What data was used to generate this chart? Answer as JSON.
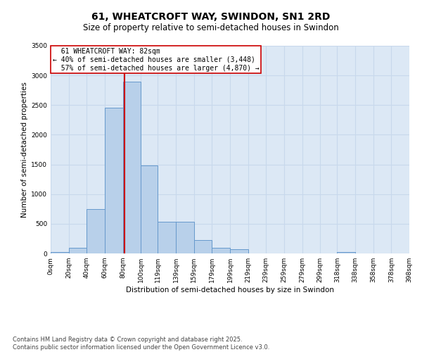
{
  "title": "61, WHEATCROFT WAY, SWINDON, SN1 2RD",
  "subtitle": "Size of property relative to semi-detached houses in Swindon",
  "xlabel": "Distribution of semi-detached houses by size in Swindon",
  "ylabel": "Number of semi-detached properties",
  "property_size": 82,
  "property_label": "61 WHEATCROFT WAY: 82sqm",
  "pct_smaller": 40,
  "count_smaller": 3448,
  "pct_larger": 57,
  "count_larger": 4870,
  "bin_edges": [
    0,
    20,
    40,
    60,
    80,
    100,
    119,
    139,
    159,
    179,
    199,
    219,
    239,
    259,
    279,
    299,
    318,
    338,
    358,
    378,
    398
  ],
  "bar_heights": [
    20,
    100,
    750,
    2450,
    2900,
    1480,
    530,
    530,
    220,
    90,
    70,
    0,
    0,
    0,
    0,
    0,
    20,
    0,
    0,
    0
  ],
  "bar_color": "#b8d0ea",
  "bar_edge_color": "#6699cc",
  "grid_color": "#c8d8ec",
  "background_color": "#dce8f5",
  "vline_color": "#cc0000",
  "annotation_box_color": "#cc0000",
  "ylim": [
    0,
    3500
  ],
  "yticks": [
    0,
    500,
    1000,
    1500,
    2000,
    2500,
    3000,
    3500
  ],
  "tick_labels": [
    "0sqm",
    "20sqm",
    "40sqm",
    "60sqm",
    "80sqm",
    "100sqm",
    "119sqm",
    "139sqm",
    "159sqm",
    "179sqm",
    "199sqm",
    "219sqm",
    "239sqm",
    "259sqm",
    "279sqm",
    "299sqm",
    "318sqm",
    "338sqm",
    "358sqm",
    "378sqm",
    "398sqm"
  ],
  "footer": "Contains HM Land Registry data © Crown copyright and database right 2025.\nContains public sector information licensed under the Open Government Licence v3.0.",
  "title_fontsize": 10,
  "subtitle_fontsize": 8.5,
  "axis_label_fontsize": 7.5,
  "tick_fontsize": 6.5,
  "annotation_fontsize": 7,
  "footer_fontsize": 6
}
